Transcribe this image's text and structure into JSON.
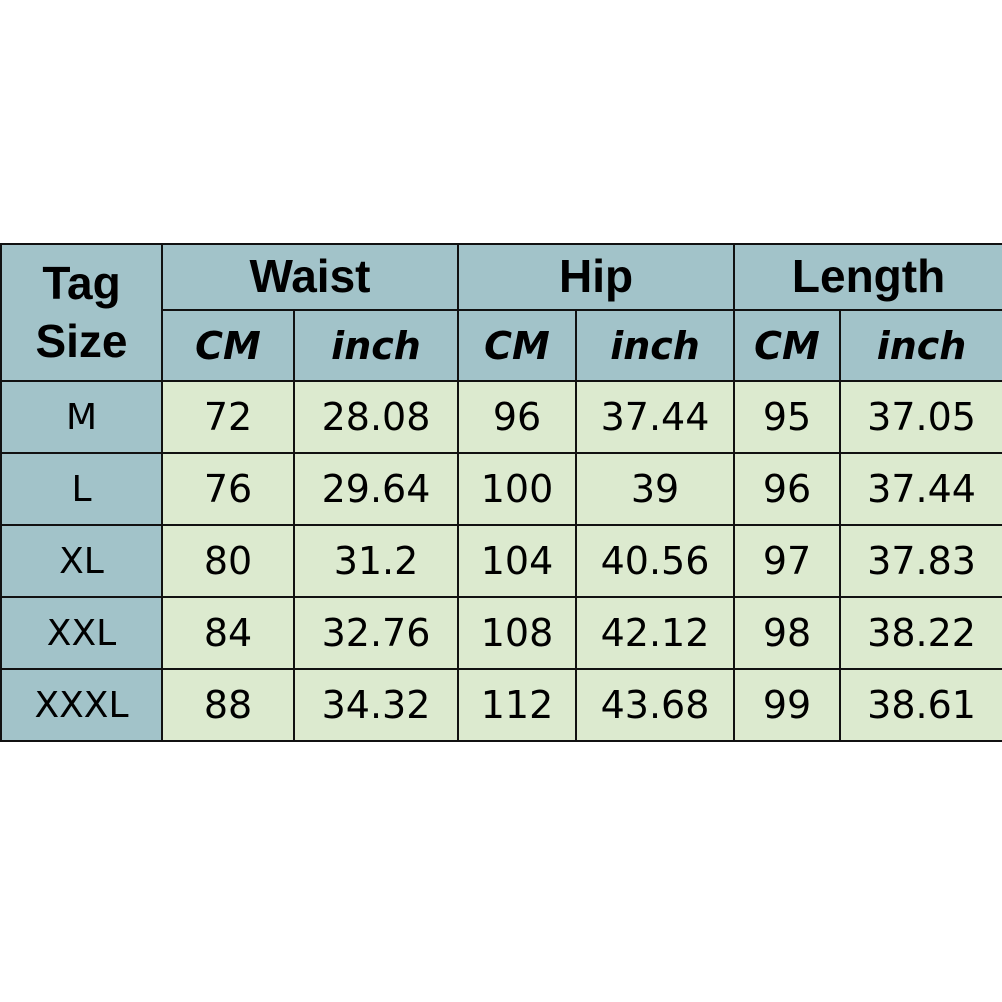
{
  "chart_data": {
    "type": "table",
    "header": {
      "tag_size_line1": "Tag",
      "tag_size_line2": "Size",
      "groups": [
        "Waist",
        "Hip",
        "Length"
      ],
      "units": [
        "CM",
        "inch",
        "CM",
        "inch",
        "CM",
        "inch"
      ]
    },
    "rows": [
      {
        "size": "M",
        "values": [
          "72",
          "28.08",
          "96",
          "37.44",
          "95",
          "37.05"
        ]
      },
      {
        "size": "L",
        "values": [
          "76",
          "29.64",
          "100",
          "39",
          "96",
          "37.44"
        ]
      },
      {
        "size": "XL",
        "values": [
          "80",
          "31.2",
          "104",
          "40.56",
          "97",
          "37.83"
        ]
      },
      {
        "size": "XXL",
        "values": [
          "84",
          "32.76",
          "108",
          "42.12",
          "98",
          "38.22"
        ]
      },
      {
        "size": "XXXL",
        "values": [
          "88",
          "34.32",
          "112",
          "43.68",
          "99",
          "38.61"
        ]
      }
    ],
    "colors": {
      "header": "#a2c3c9",
      "cells": "#dceacf",
      "border": "#111111"
    }
  }
}
